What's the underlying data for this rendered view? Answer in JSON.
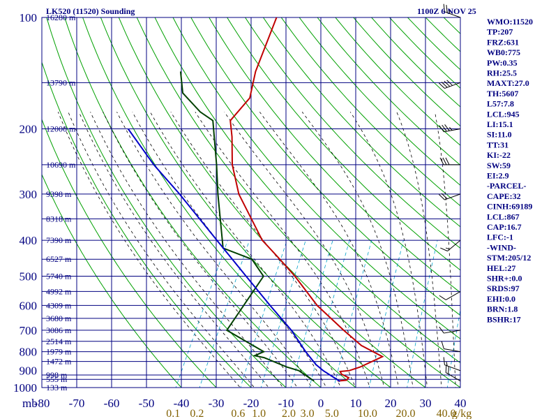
{
  "header": {
    "station": "LK520 (11520) Sounding",
    "time": "1100Z  6 NOV 25"
  },
  "indices": [
    "WMO:11520",
    "TP:207",
    "FRZ:631",
    "WB0:775",
    "PW:0.35",
    "RH:25.5",
    "MAXT:27.0",
    "TH:5607",
    "L57:7.8",
    "LCL:945",
    "LI:15.1",
    "SI:11.0",
    "TT:31",
    "KI:-22",
    "SW:59",
    "EI:2.9",
    "-PARCEL-",
    "CAPE:32",
    "CINH:69189",
    "LCL:867",
    "CAP:16.7",
    "LFC:-1",
    "-WIND-",
    "STM:205/12",
    "HEL:27",
    "SHR+:0.0",
    "SRDS:97",
    "EHI:0.0",
    "BRN:1.8",
    "BSHR:17"
  ],
  "colors": {
    "frame": "#000080",
    "dry_adiabat": "#00a000",
    "moist_adiabat": "#000000",
    "mixing_ratio": "#00a0c8",
    "temperature": "#c00000",
    "dewpoint": "#004000",
    "parcel": "#0000c8",
    "mixing_label": "#806000",
    "text": "#000080"
  },
  "chart_data": {
    "type": "line",
    "title": "LK520 (11520) Sounding",
    "subtitle": "1100Z  6 NOV 25",
    "xlabel": "",
    "ylabel": "mb",
    "y_log_scale": true,
    "skew_t": true,
    "xlim": [
      -80,
      40
    ],
    "ylim": [
      1000,
      100
    ],
    "grid": true,
    "x_ticks": [
      -80,
      -70,
      -60,
      -50,
      -40,
      -30,
      -20,
      -10,
      0,
      10,
      20,
      30,
      40
    ],
    "x_tick_labels": [
      "-80",
      "-70",
      "-60",
      "-50",
      "-40",
      "-30",
      "-20",
      "-10",
      "0",
      "10",
      "20",
      "30",
      "40"
    ],
    "y_axis_title": "mb",
    "pressure_ticks": [
      100,
      200,
      300,
      400,
      500,
      600,
      700,
      800,
      900,
      1000
    ],
    "pressure_tick_labels": [
      "100",
      "200",
      "300",
      "400",
      "500",
      "600",
      "700",
      "800",
      "900",
      "1000"
    ],
    "height_labels": [
      {
        "p": 1000,
        "text": "133 m"
      },
      {
        "p": 950,
        "text": "555 m"
      },
      {
        "p": 925,
        "text": "998 m"
      },
      {
        "p": 850,
        "text": "1472 m"
      },
      {
        "p": 800,
        "text": "1979 m"
      },
      {
        "p": 750,
        "text": "2514 m"
      },
      {
        "p": 700,
        "text": "3086 m"
      },
      {
        "p": 650,
        "text": "3680 m"
      },
      {
        "p": 600,
        "text": "4309 m"
      },
      {
        "p": 550,
        "text": "4992 m"
      },
      {
        "p": 500,
        "text": "5740 m"
      },
      {
        "p": 450,
        "text": "6527 m"
      },
      {
        "p": 400,
        "text": "7390 m"
      },
      {
        "p": 350,
        "text": "8318 m"
      },
      {
        "p": 300,
        "text": "9398 m"
      },
      {
        "p": 250,
        "text": "10690 m"
      },
      {
        "p": 200,
        "text": "12000 m"
      },
      {
        "p": 150,
        "text": "13790 m"
      },
      {
        "p": 100,
        "text": "16280 m"
      }
    ],
    "mixing_ratio_labels": [
      "0.1",
      "0.2",
      "0.6",
      "1.0",
      "2.0",
      "3.0",
      "5.0",
      "10.0",
      "20.0",
      "40.0"
    ],
    "mixing_ratio_unit": "g/kg",
    "series": [
      {
        "key": "temperature",
        "points": [
          {
            "p": 960,
            "t": 3.8
          },
          {
            "p": 955,
            "t": 6.2
          },
          {
            "p": 940,
            "t": 6.4
          },
          {
            "p": 920,
            "t": 3.8
          },
          {
            "p": 905,
            "t": 3.0
          },
          {
            "p": 900,
            "t": 5.5
          },
          {
            "p": 880,
            "t": 8.0
          },
          {
            "p": 825,
            "t": 12.8
          },
          {
            "p": 770,
            "t": 5.0
          },
          {
            "p": 700,
            "t": -2.5
          },
          {
            "p": 600,
            "t": -14.0
          },
          {
            "p": 500,
            "t": -25.0
          },
          {
            "p": 440,
            "t": -33.5
          },
          {
            "p": 400,
            "t": -40.0
          },
          {
            "p": 300,
            "t": -54.0
          },
          {
            "p": 250,
            "t": -60.5
          },
          {
            "p": 210,
            "t": -65.0
          },
          {
            "p": 190,
            "t": -68.0
          },
          {
            "p": 165,
            "t": -66.0
          },
          {
            "p": 140,
            "t": -68.5
          },
          {
            "p": 100,
            "t": -71.0
          }
        ]
      },
      {
        "key": "dewpoint",
        "points": [
          {
            "p": 960,
            "t": -3.0
          },
          {
            "p": 900,
            "t": -9.0
          },
          {
            "p": 880,
            "t": -13.0
          },
          {
            "p": 830,
            "t": -21.0
          },
          {
            "p": 820,
            "t": -24.0
          },
          {
            "p": 800,
            "t": -22.0
          },
          {
            "p": 700,
            "t": -36.0
          },
          {
            "p": 500,
            "t": -34.0
          },
          {
            "p": 450,
            "t": -40.0
          },
          {
            "p": 420,
            "t": -50.0
          },
          {
            "p": 300,
            "t": -60.0
          },
          {
            "p": 250,
            "t": -65.0
          },
          {
            "p": 190,
            "t": -73.0
          },
          {
            "p": 180,
            "t": -78.0
          },
          {
            "p": 160,
            "t": -86.0
          },
          {
            "p": 140,
            "t": -90.0
          }
        ]
      },
      {
        "key": "parcel",
        "points": [
          {
            "p": 962,
            "t": 4.5
          },
          {
            "p": 900,
            "t": -2.0
          },
          {
            "p": 867,
            "t": -5.0
          },
          {
            "p": 800,
            "t": -10.0
          },
          {
            "p": 700,
            "t": -17.5
          },
          {
            "p": 600,
            "t": -27.5
          },
          {
            "p": 500,
            "t": -39.0
          },
          {
            "p": 400,
            "t": -53.0
          },
          {
            "p": 300,
            "t": -71.0
          },
          {
            "p": 250,
            "t": -83.0
          },
          {
            "p": 200,
            "t": -96.0
          }
        ]
      }
    ],
    "wind_barbs": [
      {
        "p": 960,
        "dir": 300,
        "spd": 20
      },
      {
        "p": 900,
        "dir": 290,
        "spd": 15
      },
      {
        "p": 800,
        "dir": 280,
        "spd": 10
      },
      {
        "p": 700,
        "dir": 260,
        "spd": 10
      },
      {
        "p": 550,
        "dir": 240,
        "spd": 10
      },
      {
        "p": 400,
        "dir": 230,
        "spd": 15
      },
      {
        "p": 300,
        "dir": 250,
        "spd": 20
      },
      {
        "p": 250,
        "dir": 270,
        "spd": 30
      },
      {
        "p": 200,
        "dir": 260,
        "spd": 35
      },
      {
        "p": 150,
        "dir": 250,
        "spd": 40
      },
      {
        "p": 100,
        "dir": 290,
        "spd": 25
      }
    ]
  }
}
